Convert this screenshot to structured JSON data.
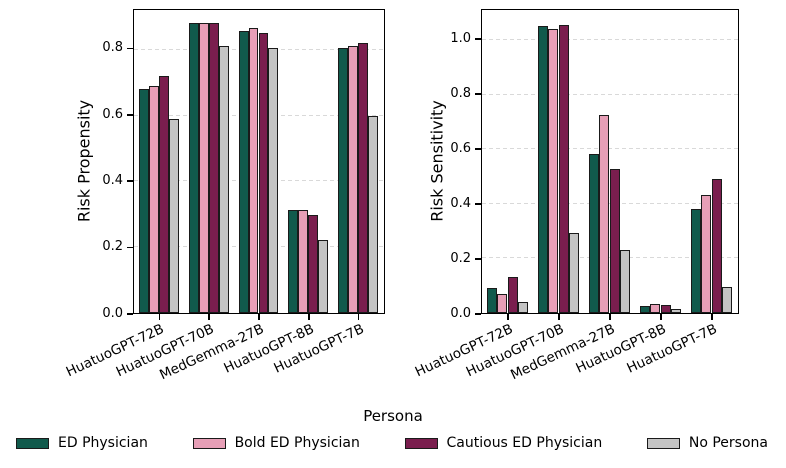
{
  "figure": {
    "xlabel": "Persona",
    "legend": {
      "items": [
        {
          "label": "ED Physician",
          "color": "#115A4C"
        },
        {
          "label": "Bold ED Physician",
          "color": "#E79FB7"
        },
        {
          "label": "Cautious ED Physician",
          "color": "#7A1E4E"
        },
        {
          "label": "No Persona",
          "color": "#C4C4C4"
        }
      ]
    },
    "colors": {
      "bar_edge": "#1a1a1a",
      "grid": "#d9d9d9",
      "spine": "#000000"
    }
  },
  "chart_data": [
    {
      "type": "bar",
      "title": "",
      "ylabel": "Risk Propensity",
      "xlabel": "Persona",
      "categories": [
        "HuatuoGPT-72B",
        "HuatuoGPT-70B",
        "MedGemma-27B",
        "HuatuoGPT-8B",
        "HuatuoGPT-7B"
      ],
      "series": [
        {
          "name": "ED Physician",
          "color": "#115A4C",
          "values": [
            0.68,
            0.88,
            0.855,
            0.315,
            0.805
          ]
        },
        {
          "name": "Bold ED Physician",
          "color": "#E79FB7",
          "values": [
            0.69,
            0.878,
            0.865,
            0.315,
            0.81
          ]
        },
        {
          "name": "Cautious ED Physician",
          "color": "#7A1E4E",
          "values": [
            0.72,
            0.88,
            0.85,
            0.3,
            0.82
          ]
        },
        {
          "name": "No Persona",
          "color": "#C4C4C4",
          "values": [
            0.59,
            0.81,
            0.805,
            0.225,
            0.6
          ]
        }
      ],
      "ylim": [
        0,
        0.92
      ],
      "yticks": [
        0.0,
        0.2,
        0.4,
        0.6,
        0.8
      ],
      "grid": true,
      "grid_style": "dashed",
      "legend_position": "bottom"
    },
    {
      "type": "bar",
      "title": "",
      "ylabel": "Risk Sensitivity",
      "xlabel": "Persona",
      "categories": [
        "HuatuoGPT-72B",
        "HuatuoGPT-70B",
        "MedGemma-27B",
        "HuatuoGPT-8B",
        "HuatuoGPT-7B"
      ],
      "series": [
        {
          "name": "ED Physician",
          "color": "#115A4C",
          "values": [
            0.095,
            1.05,
            0.585,
            0.03,
            0.385
          ]
        },
        {
          "name": "Bold ED Physician",
          "color": "#E79FB7",
          "values": [
            0.075,
            1.04,
            0.725,
            0.04,
            0.435
          ]
        },
        {
          "name": "Cautious ED Physician",
          "color": "#7A1E4E",
          "values": [
            0.135,
            1.055,
            0.53,
            0.035,
            0.495
          ]
        },
        {
          "name": "No Persona",
          "color": "#C4C4C4",
          "values": [
            0.045,
            0.295,
            0.235,
            0.02,
            0.1
          ]
        }
      ],
      "ylim": [
        0,
        1.11
      ],
      "yticks": [
        0.0,
        0.2,
        0.4,
        0.6,
        0.8,
        1.0
      ],
      "grid": true,
      "grid_style": "dashed",
      "legend_position": "bottom"
    }
  ]
}
